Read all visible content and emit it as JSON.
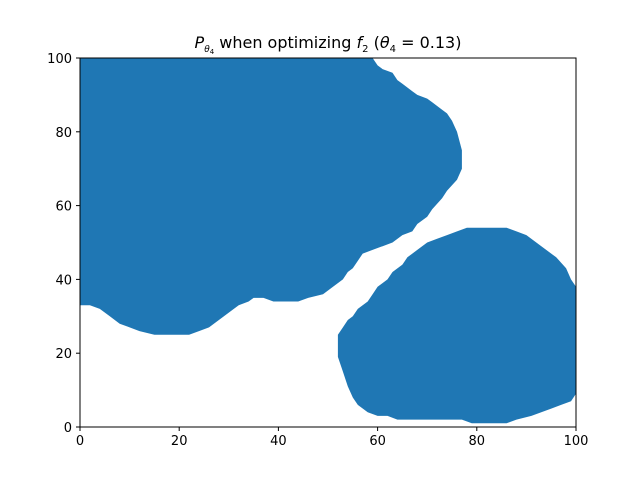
{
  "chart_data": {
    "type": "heatmap",
    "title": {
      "p": "P",
      "p_sub": "θ",
      "p_sub_sub": "4",
      "middle": " when optimizing ",
      "f": "f",
      "f_sub": "2",
      "paren_open": " (",
      "theta": "θ",
      "theta_sub": "4",
      "equals_value": " = 0.13)"
    },
    "xlabel": "",
    "ylabel": "",
    "xlim": [
      0,
      100
    ],
    "ylim": [
      0,
      100
    ],
    "xticks": [
      "0",
      "20",
      "40",
      "60",
      "80",
      "100"
    ],
    "yticks": [
      "0",
      "20",
      "40",
      "60",
      "80",
      "100"
    ],
    "fill_color": "#1f77b4",
    "description": "Filled region where the selection indicator is 1 on a 100x100 grid",
    "regions": [
      {
        "name": "upper-left-region",
        "boundary": [
          [
            0,
            100
          ],
          [
            59,
            100
          ],
          [
            60,
            98
          ],
          [
            61,
            97
          ],
          [
            63,
            96
          ],
          [
            64,
            94
          ],
          [
            65,
            93
          ],
          [
            67,
            91
          ],
          [
            68,
            90
          ],
          [
            70,
            89
          ],
          [
            71,
            88
          ],
          [
            73,
            86
          ],
          [
            74,
            85
          ],
          [
            75,
            83
          ],
          [
            76,
            80
          ],
          [
            77,
            75
          ],
          [
            77,
            70
          ],
          [
            76,
            67
          ],
          [
            74,
            64
          ],
          [
            73,
            62
          ],
          [
            71,
            59
          ],
          [
            70,
            57
          ],
          [
            68,
            55
          ],
          [
            67,
            53
          ],
          [
            65,
            52
          ],
          [
            63,
            50
          ],
          [
            61,
            49
          ],
          [
            59,
            48
          ],
          [
            57,
            47
          ],
          [
            56,
            45
          ],
          [
            55,
            43
          ],
          [
            54,
            42
          ],
          [
            53,
            40
          ],
          [
            51,
            38
          ],
          [
            49,
            36
          ],
          [
            46,
            35
          ],
          [
            44,
            34
          ],
          [
            41,
            34
          ],
          [
            39,
            34
          ],
          [
            37,
            35
          ],
          [
            35,
            35
          ],
          [
            34,
            34
          ],
          [
            32,
            33
          ],
          [
            30,
            31
          ],
          [
            28,
            29
          ],
          [
            26,
            27
          ],
          [
            24,
            26
          ],
          [
            22,
            25
          ],
          [
            20,
            25
          ],
          [
            18,
            25
          ],
          [
            15,
            25
          ],
          [
            12,
            26
          ],
          [
            10,
            27
          ],
          [
            8,
            28
          ],
          [
            6,
            30
          ],
          [
            4,
            32
          ],
          [
            2,
            33
          ],
          [
            0,
            33
          ]
        ]
      },
      {
        "name": "lower-right-region",
        "boundary": [
          [
            52,
            25
          ],
          [
            53,
            27
          ],
          [
            54,
            29
          ],
          [
            55,
            30
          ],
          [
            56,
            32
          ],
          [
            58,
            34
          ],
          [
            59,
            36
          ],
          [
            60,
            38
          ],
          [
            62,
            40
          ],
          [
            63,
            42
          ],
          [
            65,
            44
          ],
          [
            66,
            46
          ],
          [
            68,
            48
          ],
          [
            70,
            50
          ],
          [
            72,
            51
          ],
          [
            74,
            52
          ],
          [
            76,
            53
          ],
          [
            78,
            54
          ],
          [
            80,
            54
          ],
          [
            83,
            54
          ],
          [
            86,
            54
          ],
          [
            88,
            53
          ],
          [
            90,
            52
          ],
          [
            92,
            50
          ],
          [
            94,
            48
          ],
          [
            96,
            46
          ],
          [
            98,
            43
          ],
          [
            99,
            40
          ],
          [
            100,
            38
          ],
          [
            100,
            9
          ],
          [
            99,
            7
          ],
          [
            97,
            6
          ],
          [
            95,
            5
          ],
          [
            93,
            4
          ],
          [
            91,
            3
          ],
          [
            88,
            2
          ],
          [
            86,
            1
          ],
          [
            82,
            1
          ],
          [
            79,
            1
          ],
          [
            77,
            2
          ],
          [
            75,
            2
          ],
          [
            73,
            2
          ],
          [
            70,
            2
          ],
          [
            68,
            2
          ],
          [
            66,
            2
          ],
          [
            64,
            2
          ],
          [
            62,
            3
          ],
          [
            60,
            3
          ],
          [
            58,
            4
          ],
          [
            56,
            6
          ],
          [
            55,
            8
          ],
          [
            54,
            11
          ],
          [
            53,
            15
          ],
          [
            52,
            19
          ]
        ]
      }
    ]
  }
}
